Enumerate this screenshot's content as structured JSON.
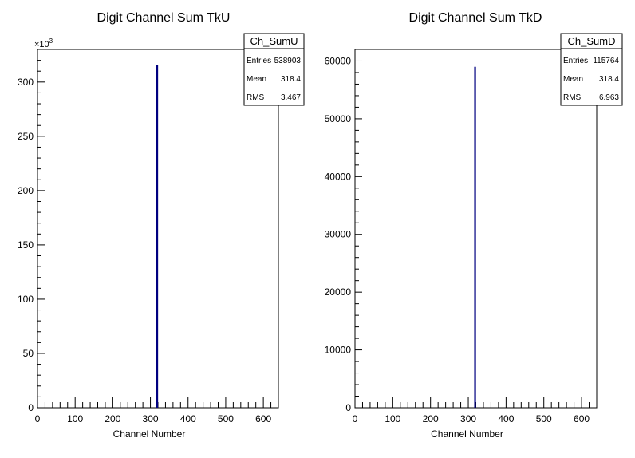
{
  "chart_data": [
    {
      "type": "bar",
      "title": "Digit Channel Sum TkU",
      "xlabel": "Channel Number",
      "ylabel": "",
      "xlim": [
        0,
        640
      ],
      "ylim": [
        0,
        330000
      ],
      "x_ticks": [
        0,
        100,
        200,
        300,
        400,
        500,
        600
      ],
      "x_tick_labels": [
        "0",
        "100",
        "200",
        "300",
        "400",
        "500",
        "600"
      ],
      "y_ticks": [
        0,
        50000,
        100000,
        150000,
        200000,
        250000,
        300000
      ],
      "y_tick_labels": [
        "0",
        "50",
        "100",
        "150",
        "200",
        "250",
        "300"
      ],
      "y_exponent_label": "×10",
      "y_exponent_power": "3",
      "series": [
        {
          "color": "#000080",
          "x": [
            318
          ],
          "values": [
            316000
          ]
        }
      ],
      "stats": {
        "name": "Ch_SumU",
        "rows": [
          {
            "label": "Entries",
            "value": "538903"
          },
          {
            "label": "Mean",
            "value": "318.4"
          },
          {
            "label": "RMS",
            "value": "3.467"
          }
        ]
      },
      "grid": false
    },
    {
      "type": "bar",
      "title": "Digit Channel Sum TkD",
      "xlabel": "Channel Number",
      "ylabel": "",
      "xlim": [
        0,
        640
      ],
      "ylim": [
        0,
        62000
      ],
      "x_ticks": [
        0,
        100,
        200,
        300,
        400,
        500,
        600
      ],
      "x_tick_labels": [
        "0",
        "100",
        "200",
        "300",
        "400",
        "500",
        "600"
      ],
      "y_ticks": [
        0,
        10000,
        20000,
        30000,
        40000,
        50000,
        60000
      ],
      "y_tick_labels": [
        "0",
        "10000",
        "20000",
        "30000",
        "40000",
        "50000",
        "60000"
      ],
      "y_exponent_label": "",
      "y_exponent_power": "",
      "series": [
        {
          "color": "#000080",
          "x": [
            318
          ],
          "values": [
            59000
          ]
        }
      ],
      "stats": {
        "name": "Ch_SumD",
        "rows": [
          {
            "label": "Entries",
            "value": "115764"
          },
          {
            "label": "Mean",
            "value": "318.4"
          },
          {
            "label": "RMS",
            "value": "6.963"
          }
        ]
      },
      "grid": false
    }
  ]
}
